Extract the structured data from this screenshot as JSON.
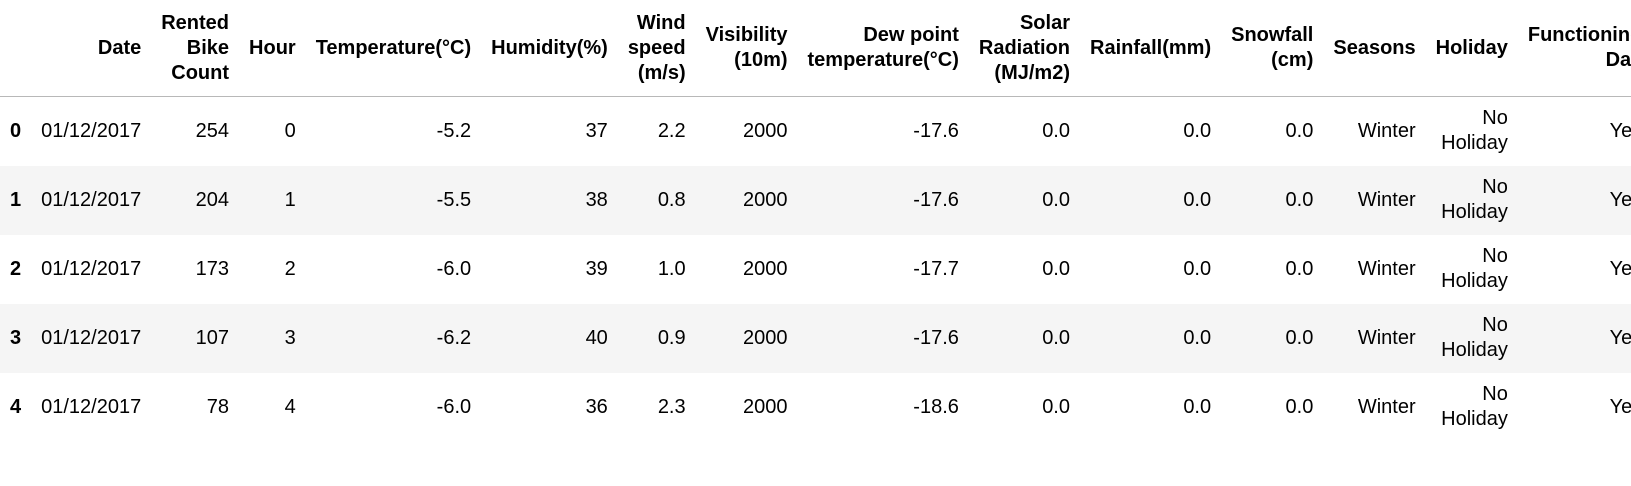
{
  "columns": [
    "",
    "Date",
    "Rented Bike Count",
    "Hour",
    "Temperature(°C)",
    "Humidity(%)",
    "Wind speed (m/s)",
    "Visibility (10m)",
    "Dew point temperature(°C)",
    "Solar Radiation (MJ/m2)",
    "Rainfall(mm)",
    "Snowfall (cm)",
    "Seasons",
    "Holiday",
    "Functioning Day"
  ],
  "rows": [
    [
      "0",
      "01/12/2017",
      "254",
      "0",
      "-5.2",
      "37",
      "2.2",
      "2000",
      "-17.6",
      "0.0",
      "0.0",
      "0.0",
      "Winter",
      "No Holiday",
      "Yes"
    ],
    [
      "1",
      "01/12/2017",
      "204",
      "1",
      "-5.5",
      "38",
      "0.8",
      "2000",
      "-17.6",
      "0.0",
      "0.0",
      "0.0",
      "Winter",
      "No Holiday",
      "Yes"
    ],
    [
      "2",
      "01/12/2017",
      "173",
      "2",
      "-6.0",
      "39",
      "1.0",
      "2000",
      "-17.7",
      "0.0",
      "0.0",
      "0.0",
      "Winter",
      "No Holiday",
      "Yes"
    ],
    [
      "3",
      "01/12/2017",
      "107",
      "3",
      "-6.2",
      "40",
      "0.9",
      "2000",
      "-17.6",
      "0.0",
      "0.0",
      "0.0",
      "Winter",
      "No Holiday",
      "Yes"
    ],
    [
      "4",
      "01/12/2017",
      "78",
      "4",
      "-6.0",
      "36",
      "2.3",
      "2000",
      "-18.6",
      "0.0",
      "0.0",
      "0.0",
      "Winter",
      "No Holiday",
      "Yes"
    ]
  ],
  "colors": {
    "stripe": "#f5f5f5",
    "header_rule": "#b8b8b8"
  }
}
